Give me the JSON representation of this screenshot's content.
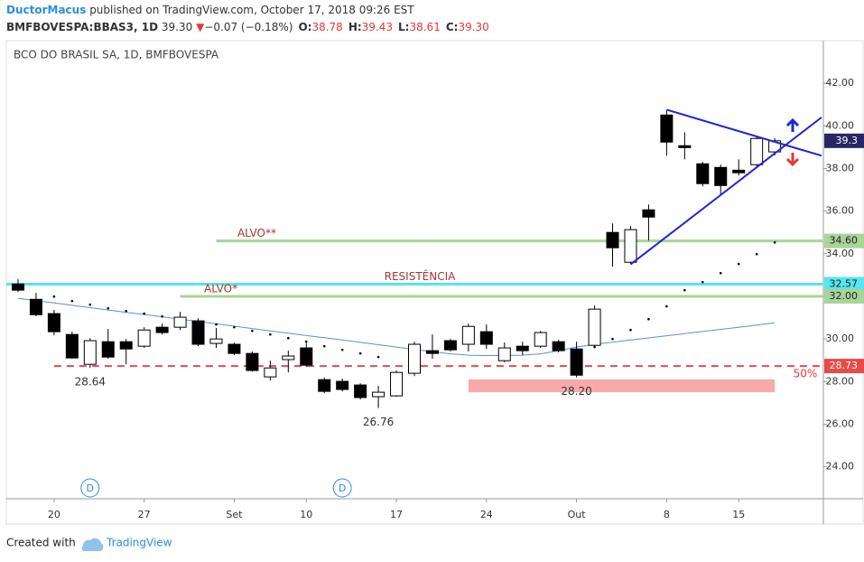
{
  "header": {
    "author": "DuctorMacus",
    "published": "published on TradingView.com, October 17, 2018 09:26 EST",
    "symbol": "BMFBOVESPA:BBAS3, 1D",
    "price": "39.30",
    "arrow": "▼",
    "change": "−0.07 (−0.18%)",
    "ohlc": [
      {
        "key": "O:",
        "value": "38.78"
      },
      {
        "key": "H:",
        "value": "39.43"
      },
      {
        "key": "L:",
        "value": "38.61"
      },
      {
        "key": "C:",
        "value": "39.30"
      }
    ]
  },
  "chart_data": {
    "type": "candlestick",
    "title": "BCO DO BRASIL SA, 1D, BMFBOVESPA",
    "xlim": [
      -0.65,
      44.7
    ],
    "ylim": [
      22.5,
      44
    ],
    "xticks": [
      {
        "value": 2,
        "label": "20"
      },
      {
        "value": 7,
        "label": "27"
      },
      {
        "value": 12,
        "label": "Set"
      },
      {
        "value": 16,
        "label": "10"
      },
      {
        "value": 21,
        "label": "17"
      },
      {
        "value": 26,
        "label": "24"
      },
      {
        "value": 31,
        "label": "Out"
      },
      {
        "value": 36,
        "label": "8"
      },
      {
        "value": 40,
        "label": "15"
      }
    ],
    "yticks": [
      {
        "value": 24,
        "label": "24.00"
      },
      {
        "value": 26,
        "label": "26.00"
      },
      {
        "value": 28,
        "label": "28.00"
      },
      {
        "value": 30,
        "label": "30.00"
      },
      {
        "value": 32,
        "label": "32.00"
      },
      {
        "value": 34,
        "label": "34.00"
      },
      {
        "value": 36,
        "label": "36.00"
      },
      {
        "value": 38,
        "label": "38.00"
      },
      {
        "value": 40,
        "label": "40.00"
      },
      {
        "value": 42,
        "label": "42.00"
      }
    ],
    "open": [
      32.58,
      31.86,
      31.19,
      30.21,
      28.81,
      29.87,
      29.87,
      29.66,
      30.55,
      30.55,
      30.85,
      29.79,
      29.75,
      29.32,
      28.22,
      29.03,
      29.58,
      28.09,
      28.01,
      27.84,
      27.29,
      27.33,
      28.39,
      29.45,
      29.92,
      29.75,
      30.34,
      28.98,
      29.66,
      29.66,
      29.87,
      29.53,
      29.7,
      35.0,
      33.6,
      36.06,
      40.51,
      39.07,
      38.22,
      38.05,
      37.92,
      38.18,
      38.78
    ],
    "high": [
      32.8,
      32.16,
      31.36,
      30.34,
      30.04,
      30.47,
      30.0,
      30.55,
      30.72,
      31.27,
      30.97,
      30.51,
      29.83,
      29.41,
      28.98,
      29.45,
      29.79,
      28.18,
      28.14,
      27.92,
      27.8,
      28.52,
      29.87,
      30.21,
      30.0,
      30.72,
      30.68,
      29.83,
      29.87,
      30.38,
      29.96,
      29.87,
      31.57,
      35.42,
      35.3,
      36.31,
      40.76,
      39.7,
      38.31,
      38.18,
      38.43,
      39.53,
      39.43
    ],
    "low": [
      32.2,
      31.06,
      30.17,
      29.07,
      28.64,
      29.07,
      28.81,
      29.58,
      30.21,
      30.42,
      29.66,
      29.58,
      29.24,
      28.47,
      28.05,
      28.43,
      28.69,
      27.46,
      27.54,
      27.16,
      26.76,
      27.29,
      28.26,
      29.07,
      29.41,
      29.41,
      29.53,
      28.9,
      29.24,
      29.58,
      29.37,
      28.2,
      29.62,
      33.39,
      33.52,
      34.62,
      38.6,
      38.43,
      37.16,
      36.74,
      37.67,
      38.09,
      38.61
    ],
    "close": [
      32.29,
      31.14,
      30.34,
      29.11,
      29.92,
      29.15,
      29.53,
      30.42,
      30.3,
      31.02,
      29.75,
      30.0,
      29.32,
      28.52,
      28.64,
      29.2,
      28.77,
      27.54,
      27.63,
      27.25,
      27.5,
      28.43,
      29.75,
      29.32,
      29.49,
      30.59,
      29.75,
      29.58,
      29.45,
      30.3,
      29.45,
      28.3,
      31.4,
      34.28,
      35.13,
      35.72,
      39.24,
      38.98,
      37.29,
      37.2,
      37.8,
      39.41,
      39.3
    ],
    "moving_average": {
      "color": "#5b8fd6",
      "values": [
        31.91,
        31.8,
        31.69,
        31.58,
        31.47,
        31.36,
        31.25,
        31.15,
        31.04,
        30.93,
        30.82,
        30.71,
        30.6,
        30.49,
        30.38,
        30.27,
        30.16,
        30.06,
        29.95,
        29.84,
        29.73,
        29.62,
        29.51,
        29.4,
        29.3,
        29.24,
        29.22,
        29.22,
        29.24,
        29.3,
        29.45,
        29.62,
        29.75,
        29.85,
        29.95,
        30.05,
        30.15,
        30.25,
        30.35,
        30.45,
        30.55,
        30.65,
        30.76
      ]
    },
    "sar": {
      "color": "#000000",
      "values": [
        null,
        null,
        31.99,
        31.78,
        31.61,
        31.44,
        31.31,
        31.19,
        31.06,
        30.93,
        30.81,
        30.68,
        30.55,
        30.38,
        30.21,
        30.04,
        29.87,
        29.66,
        29.49,
        29.32,
        29.15,
        null,
        null,
        null,
        null,
        null,
        null,
        null,
        null,
        null,
        null,
        null,
        29.62,
        30.0,
        30.42,
        30.93,
        31.53,
        32.29,
        32.67,
        33.09,
        33.52,
        33.98,
        34.53
      ]
    },
    "levels": [
      {
        "value": {
          "value": 34.6,
          "label": "34.60"
        },
        "label": "ALVO**",
        "color": "#a9d49a",
        "start": 11
      },
      {
        "value": 32.57,
        "label": "RESISTÊNCIA",
        "color": "#55e6f2",
        "start": -0.65
      },
      {
        "value": {
          "value": 32,
          "label": "32.00"
        },
        "label": "ALVO*",
        "color": "#a9d49a",
        "start": 9
      },
      {
        "value": 28.73,
        "label": "50%",
        "color": "#e84a4a",
        "start": 2,
        "dashed": true
      }
    ],
    "zone": {
      "from": 25,
      "to": 42,
      "ylim": [
        27.5,
        28.1
      ],
      "color": "#f8a9a9"
    },
    "trend_lines": [
      {
        "points": [
          [
            34,
            33.5
          ],
          [
            44.6,
            40.4
          ]
        ],
        "color": "#1f25d4"
      },
      {
        "points": [
          [
            36,
            40.76
          ],
          [
            44.6,
            38.6
          ]
        ],
        "color": "#1f25d4"
      }
    ],
    "low_labels": [
      {
        "index": 4,
        "label": "28.64"
      },
      {
        "index": 20,
        "label": "26.76"
      },
      {
        "index": 31,
        "label": "28.20"
      }
    ],
    "events": [
      {
        "index": 4,
        "label": "D"
      },
      {
        "index": 18,
        "label": "D"
      }
    ],
    "last_price_color": "#2b2563"
  },
  "footer": {
    "created": "Created with",
    "brand": "TradingView"
  }
}
